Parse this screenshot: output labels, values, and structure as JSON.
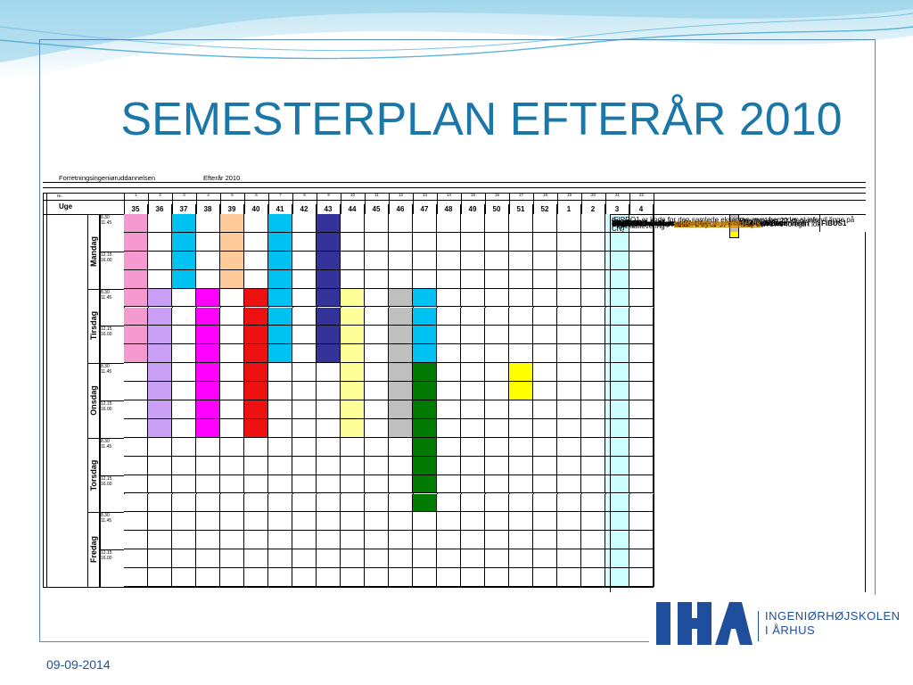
{
  "title": "SEMESTERPLAN EFTERÅR 2010",
  "footer_date": "09-09-2014",
  "logo": {
    "mark": "IHA",
    "line1": "INGENIØRHØJSKOLEN",
    "line2": "I ÅRHUS"
  },
  "plan": {
    "program": "Forretningsingeniøruddannelsen",
    "term": "Efterår 2010",
    "nr_label": "Nr.",
    "week_label": "Uge",
    "seq_numbers": [
      "1",
      "2",
      "3",
      "4",
      "5",
      "6",
      "7",
      "8",
      "9",
      "10",
      "11",
      "12",
      "13",
      "14",
      "15",
      "16",
      "17",
      "18",
      "19",
      "20",
      "21",
      "22"
    ],
    "weeks": [
      "35",
      "36",
      "37",
      "38",
      "39",
      "40",
      "41",
      "42",
      "43",
      "44",
      "45",
      "46",
      "47",
      "48",
      "49",
      "50",
      "51",
      "52",
      "1",
      "2",
      "3",
      "4"
    ],
    "days": [
      "Mandag",
      "Tirsdag",
      "Onsdag",
      "Torsdag",
      "Fredag"
    ],
    "time_am": "8.30\n11.45",
    "time_pm": "12.15\n16.00",
    "colors": {
      "P": "#f59ad0",
      "L": "#c9a0f5",
      "C": "#00c2f2",
      "O": "#ffca99",
      "N": "#33339a",
      "Y": "#ffff99",
      "G": "#bfbfbf",
      "M": "#ff00ff",
      "R": "#ee1111",
      "D": "#007a00",
      "E": "#ffff00",
      "T": "#ccffff",
      "W": "#ffffff"
    },
    "grid": [
      [
        "PWCWOWCWNWWWWWWWWWWWTW",
        "PWCWOWCWNWWWWWWWWWWWTW",
        "PWCWOWCWNWWWWWWWWWWWTW",
        "PWCWOWCWNWWWWWWWWWWWTW"
      ],
      [
        "PLWMWRCWNYWGCWWWWWWWTW",
        "PLWMWRCWNYWGCWWWWWWWTW",
        "PLWMWRCWNYWGCWWWWWWWTW",
        "PLWMWRCWNYWGCWWWWWWWTW"
      ],
      [
        "WLWMWRWWWYWGDWWWEWWWTW",
        "WLWMWRWWWYWGDWWWEWWWTW",
        "WLWMWRWWWYWGDWWWWWWWTW",
        "WLWMWRWWWYWGDWWWWWWWTW"
      ],
      [
        "WWWWWWWWWWWWDWWWWWWWTW",
        "WWWWWWWWWWWWDWWWWWWWTW",
        "WWWWWWWWWWWWDWWWWWWWTW",
        "WWWWWWWWWWWWDWWWWWWWTW"
      ],
      [
        "WWWWWWWWWWWWWWWWWWWWTW",
        "WWWWWWWWWWWWWWWWWWWWTW",
        "WWWWWWWWWWWWWWWWWWWWTW",
        "WWWWWWWWWWWWWWWWWWWWTW"
      ]
    ]
  },
  "info": {
    "note": "Lokale 319 er stamlokale. Dog vil uv mandag den 27/9 foregå i lokale 510)",
    "projektaflevering_label": "Projektaflevering",
    "projektaflevering_value": "Onsdag den 22. december 2010 kl. 12",
    "projektaflevering_color": "#ffff00",
    "eksamen_label": "Eksamen",
    "eksamen_value": "Uge 3",
    "eksamen_color": "#ccffff",
    "course_headers": {
      "course": "Kurser",
      "teacher": "Undervisere",
      "code": "Kode"
    },
    "courses": [
      {
        "name": "Introduktionsdage",
        "color": "#f59ad0",
        "teacher": "Tom og Susan",
        "code": "",
        "code_bg": "#bfbfbf"
      },
      {
        "name": "Strategi",
        "color": "#c9a0f5",
        "teacher": "Tom",
        "code": "FIFOR1",
        "code_bg": "#ffffff"
      },
      {
        "name": "Supply Chain Management",
        "color": "#ff00ff",
        "teacher": "Tom",
        "code": "FIVDK1",
        "code_bg": "#ffffff"
      },
      {
        "name": "Value Stream Management",
        "color": "#ffca99",
        "teacher": "Tom",
        "code": "FIVDK1",
        "code_bg": "#ffffff"
      },
      {
        "name": "Kommunikation",
        "color": "#2f8f5f",
        "teacher": "Elsebeth Severinsen",
        "code": "FIKOM1",
        "code_bg": "#ffffff"
      },
      {
        "name": "LEAN",
        "color": "#ee1111",
        "teacher": "Tom",
        "code": "FIVDK1",
        "code_bg": "#ffffff"
      },
      {
        "name": "Organisation",
        "color": "#33339a",
        "teacher": "Susan",
        "code": "FIORG1",
        "code_bg": "#ffffff"
      },
      {
        "name": "SCOR",
        "color": "#ffff99",
        "teacher": "Tom",
        "code": "FIVDK1",
        "code_bg": "#ffffff"
      },
      {
        "name": "Projektledelse",
        "color": "#00c2f2",
        "teacher": "Leo Pedersen",
        "code": "FIPRL1",
        "code_bg": "#ffffff"
      },
      {
        "name": "Business forståelse",
        "color": "#bfbfbf",
        "teacher": "Tom",
        "code": "FIBUS1",
        "code_bg": "#ffffff"
      }
    ],
    "exam_note": "(FIPRO1 er kode for den samlede eksamen samt herunder al info vil ligge på CN)",
    "contacts": [
      {
        "name": "Leo",
        "email": "lpe@iha.dk",
        "link": true
      },
      {
        "name": "Susan",
        "email": "sh@brobergconsulting.dk",
        "link": false
      },
      {
        "name": "Tom",
        "email": "sterobo@galnet.dk",
        "link": true
      },
      {
        "name": "Elsebeth",
        "email": "elsebeth@mindbuilder.dk",
        "link": true
      }
    ]
  }
}
